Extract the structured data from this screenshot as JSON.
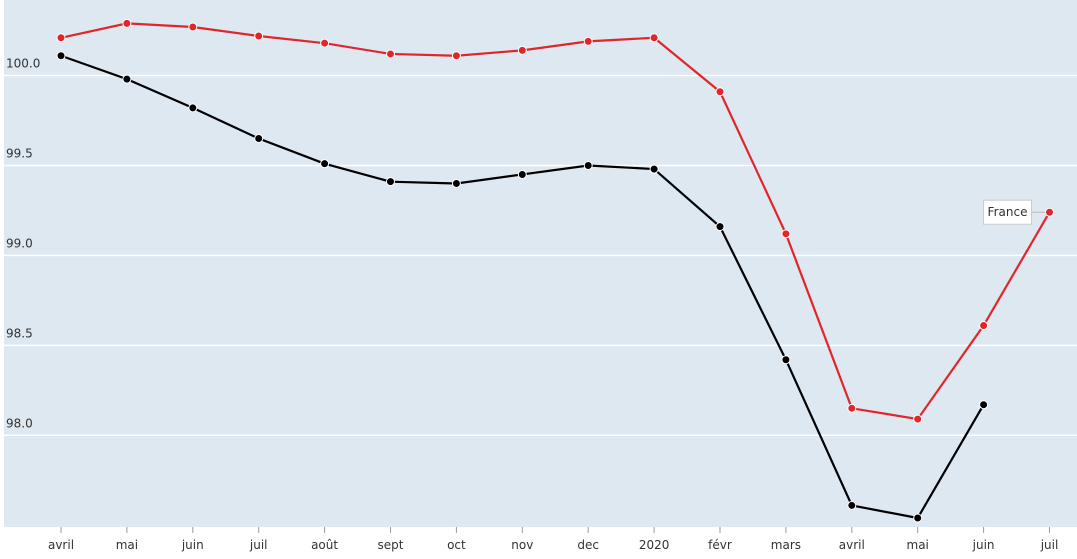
{
  "chart_data": {
    "type": "line",
    "categories": [
      "avril",
      "mai",
      "juin",
      "juil",
      "août",
      "sept",
      "oct",
      "nov",
      "dec",
      "2020",
      "févr",
      "mars",
      "avril",
      "mai",
      "juin",
      "juil"
    ],
    "series": [
      {
        "name": "France",
        "color": "#e0262b",
        "values": [
          100.21,
          100.29,
          100.27,
          100.22,
          100.18,
          100.12,
          100.11,
          100.14,
          100.19,
          100.21,
          99.91,
          99.12,
          98.15,
          98.09,
          98.61,
          99.24
        ]
      },
      {
        "color": "#000000",
        "values": [
          100.11,
          99.98,
          99.82,
          99.65,
          99.51,
          99.41,
          99.4,
          99.45,
          99.5,
          99.48,
          99.16,
          98.42,
          97.61,
          97.54,
          98.17,
          null
        ]
      }
    ],
    "ylim": [
      97.49,
      100.42
    ],
    "yticks": [
      {
        "value": 98,
        "label": "98.0"
      },
      98.5,
      {
        "value": 99,
        "label": "99.0"
      },
      99.5,
      {
        "value": 100,
        "label": "100.0"
      }
    ],
    "grid": true
  }
}
